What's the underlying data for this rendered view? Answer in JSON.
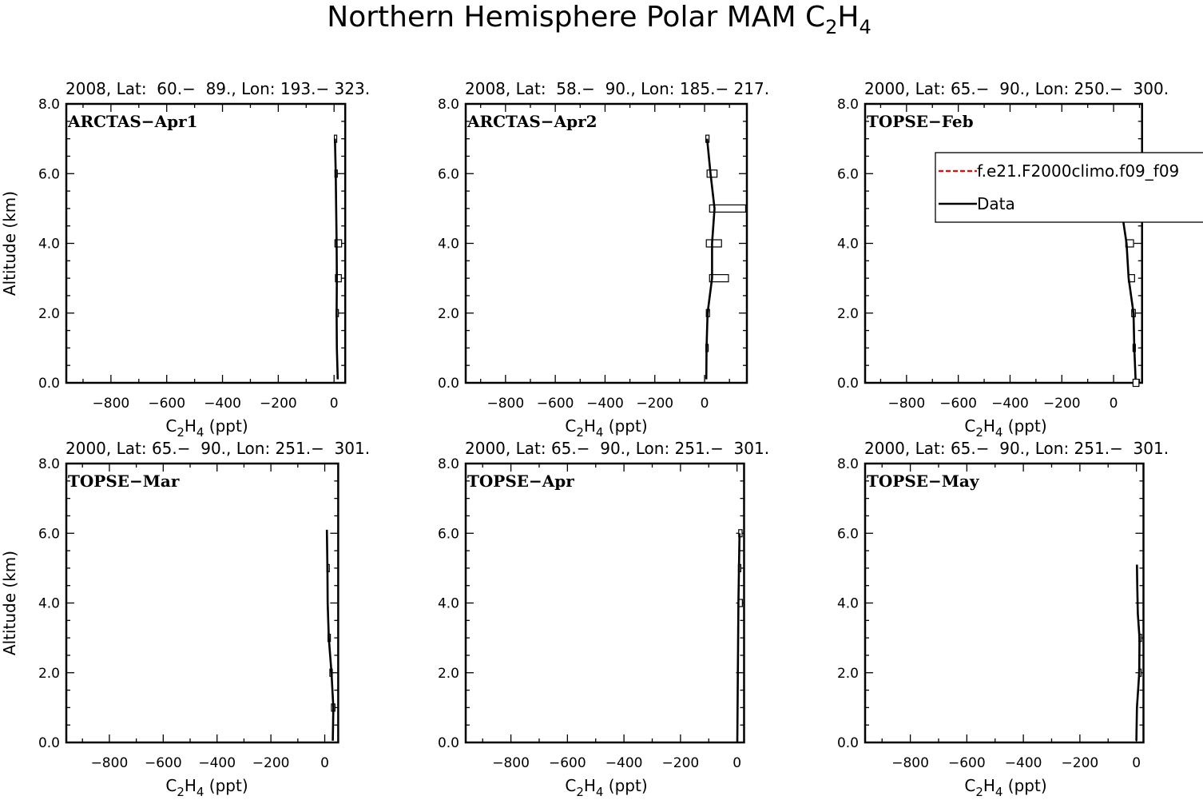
{
  "title": {
    "prefix": "Northern Hemisphere Polar MAM C",
    "sub1": "2",
    "mid": "H",
    "sub2": "4"
  },
  "chart_data": [
    {
      "type": "line",
      "subtitle": "2008, Lat:  60.−  89., Lon: 193.− 323.",
      "campaign": "ARCTAS−Apr1",
      "xlabel": "C2H4 (ppt)",
      "ylabel": "Altitude (km)",
      "xlim": [
        -960,
        40
      ],
      "ylim": [
        0,
        8
      ],
      "xmax_frac": 0.992,
      "data_series": {
        "name": "Data",
        "points": [
          [
            13,
            0.1
          ],
          [
            10,
            1.0
          ],
          [
            9,
            2.0
          ],
          [
            10,
            3.0
          ],
          [
            9,
            4.0
          ],
          [
            6,
            6.0
          ],
          [
            3,
            7.0
          ]
        ]
      },
      "boxes": [
        {
          "y": 2.0,
          "x0": 7,
          "x1": 13
        },
        {
          "y": 3.0,
          "x0": 5,
          "x1": 26
        },
        {
          "y": 4.0,
          "x0": 3,
          "x1": 27
        },
        {
          "y": 6.0,
          "x0": 3,
          "x1": 10
        },
        {
          "y": 7.0,
          "x0": 1,
          "x1": 5
        }
      ]
    },
    {
      "type": "line",
      "subtitle": "2008, Lat:  58.−  90., Lon: 185.− 217.",
      "campaign": "ARCTAS−Apr2",
      "xlabel": "C2H4 (ppt)",
      "ylabel": "Altitude (km)",
      "xlim": [
        -960,
        170
      ],
      "ylim": [
        0,
        8
      ],
      "xmax_frac": 1.0,
      "data_series": {
        "name": "Data",
        "points": [
          [
            7,
            0.1
          ],
          [
            8,
            1.0
          ],
          [
            12,
            2.0
          ],
          [
            30,
            3.0
          ],
          [
            30,
            4.0
          ],
          [
            40,
            5.0
          ],
          [
            24,
            6.0
          ],
          [
            10,
            7.0
          ]
        ]
      },
      "boxes": [
        {
          "y": 1.0,
          "x0": 5,
          "x1": 12
        },
        {
          "y": 2.0,
          "x0": 7,
          "x1": 20
        },
        {
          "y": 3.0,
          "x0": 20,
          "x1": 96
        },
        {
          "y": 4.0,
          "x0": 7,
          "x1": 68
        },
        {
          "y": 5.0,
          "x0": 20,
          "x1": 165
        },
        {
          "y": 6.0,
          "x0": 10,
          "x1": 50
        },
        {
          "y": 7.0,
          "x0": 5,
          "x1": 18
        }
      ]
    },
    {
      "type": "line",
      "subtitle": "2000, Lat: 65.−  90., Lon: 250.−  300.",
      "campaign": "TOPSE−Feb",
      "xlabel": "C2H4 (ppt)",
      "ylabel": "Altitude (km)",
      "xlim": [
        -960,
        110
      ],
      "ylim": [
        0,
        8
      ],
      "xmax_frac": 0.985,
      "legend": {
        "entries": [
          "f.e21.F2000climo.f09_f09",
          "Data"
        ],
        "colors": [
          "#ff0000",
          "#000000"
        ]
      },
      "data_series": {
        "name": "Data",
        "points": [
          [
            85,
            0.1
          ],
          [
            80,
            1.0
          ],
          [
            77,
            2.0
          ],
          [
            58,
            3.0
          ],
          [
            50,
            4.0
          ],
          [
            30,
            5.0
          ],
          [
            30,
            6.0
          ]
        ]
      },
      "boxes": [
        {
          "y": 0.0,
          "x0": 75,
          "x1": 98
        },
        {
          "y": 1.0,
          "x0": 75,
          "x1": 83
        },
        {
          "y": 2.0,
          "x0": 70,
          "x1": 84
        },
        {
          "y": 3.0,
          "x0": 57,
          "x1": 81
        },
        {
          "y": 4.0,
          "x0": 47,
          "x1": 77
        },
        {
          "y": 5.0,
          "x0": 28,
          "x1": 52
        },
        {
          "y": 6.0,
          "x0": 27,
          "x1": 33
        }
      ]
    },
    {
      "type": "line",
      "subtitle": "2000, Lat: 65.−  90., Lon: 251.−  301.",
      "campaign": "TOPSE−Mar",
      "xlabel": "C2H4 (ppt)",
      "ylabel": "Altitude (km)",
      "xlim": [
        -960,
        50
      ],
      "ylim": [
        0,
        8
      ],
      "xmax_frac": 0.967,
      "data_series": {
        "name": "Data",
        "points": [
          [
            30,
            0.05
          ],
          [
            32,
            1.0
          ],
          [
            25,
            2.0
          ],
          [
            15,
            3.0
          ],
          [
            11,
            4.0
          ],
          [
            10,
            5.0
          ],
          [
            8,
            6.1
          ]
        ]
      },
      "boxes": [
        {
          "y": 1.0,
          "x0": 25,
          "x1": 38
        },
        {
          "y": 2.0,
          "x0": 19,
          "x1": 28
        },
        {
          "y": 3.0,
          "x0": 12,
          "x1": 21
        },
        {
          "y": 5.0,
          "x0": 8,
          "x1": 17
        }
      ]
    },
    {
      "type": "line",
      "subtitle": "2000, Lat: 65.−  90., Lon: 251.−  301.",
      "campaign": "TOPSE−Apr",
      "xlabel": "C2H4 (ppt)",
      "ylabel": "Altitude (km)",
      "xlim": [
        -960,
        25
      ],
      "ylim": [
        0,
        8
      ],
      "xmax_frac": 0.99,
      "data_series": {
        "name": "Data",
        "points": [
          [
            1,
            0.0
          ],
          [
            3,
            2.0
          ],
          [
            5,
            4.0
          ],
          [
            7,
            5.0
          ],
          [
            9,
            6.0
          ]
        ]
      },
      "boxes": [
        {
          "y": 4.0,
          "x0": 6,
          "x1": 19
        },
        {
          "y": 5.0,
          "x0": 5,
          "x1": 13
        },
        {
          "y": 6.0,
          "x0": 6,
          "x1": 18
        }
      ]
    },
    {
      "type": "line",
      "subtitle": "2000, Lat: 65.−  90., Lon: 251.−  301.",
      "campaign": "TOPSE−May",
      "xlabel": "C2H4 (ppt)",
      "ylabel": "Altitude (km)",
      "xlim": [
        -960,
        25
      ],
      "ylim": [
        0,
        8
      ],
      "xmax_frac": 0.99,
      "data_series": {
        "name": "Data",
        "points": [
          [
            0,
            0.05
          ],
          [
            2,
            1.0
          ],
          [
            10,
            2.0
          ],
          [
            11,
            3.0
          ],
          [
            5,
            3.7
          ],
          [
            3,
            4.5
          ],
          [
            2,
            5.1
          ]
        ]
      },
      "boxes": [
        {
          "y": 2.0,
          "x0": 8,
          "x1": 17
        },
        {
          "y": 3.0,
          "x0": 9,
          "x1": 18
        }
      ]
    }
  ],
  "xtick_values": [
    -800,
    -600,
    -400,
    -200,
    0
  ],
  "xtick_labels": [
    "−800",
    "−600",
    "−400",
    "−200",
    "0"
  ],
  "ytick_values": [
    0,
    2,
    4,
    6,
    8
  ],
  "ytick_labels": [
    "0.0",
    "2.0",
    "4.0",
    "6.0",
    "8.0"
  ],
  "xlabel_text": {
    "pre": "C",
    "sub1": "2",
    "mid": "H",
    "sub2": "4",
    "post": " (ppt)"
  },
  "ylabel_text": "Altitude (km)"
}
